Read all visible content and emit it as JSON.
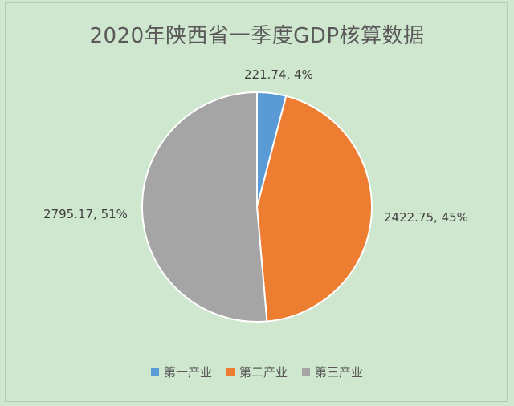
{
  "chart_data": {
    "type": "pie",
    "title": "2020年陕西省一季度GDP核算数据",
    "categories": [
      "第一产业",
      "第二产业",
      "第三产业"
    ],
    "values": [
      221.74,
      2422.75,
      2795.17
    ],
    "percent_labels": [
      "4%",
      "45%",
      "51%"
    ],
    "data_labels": [
      "221.74, 4%",
      "2422.75, 45%",
      "2795.17, 51%"
    ],
    "colors": [
      "#5b9bd5",
      "#ed7d31",
      "#a5a5a5"
    ],
    "legend_position": "bottom"
  }
}
